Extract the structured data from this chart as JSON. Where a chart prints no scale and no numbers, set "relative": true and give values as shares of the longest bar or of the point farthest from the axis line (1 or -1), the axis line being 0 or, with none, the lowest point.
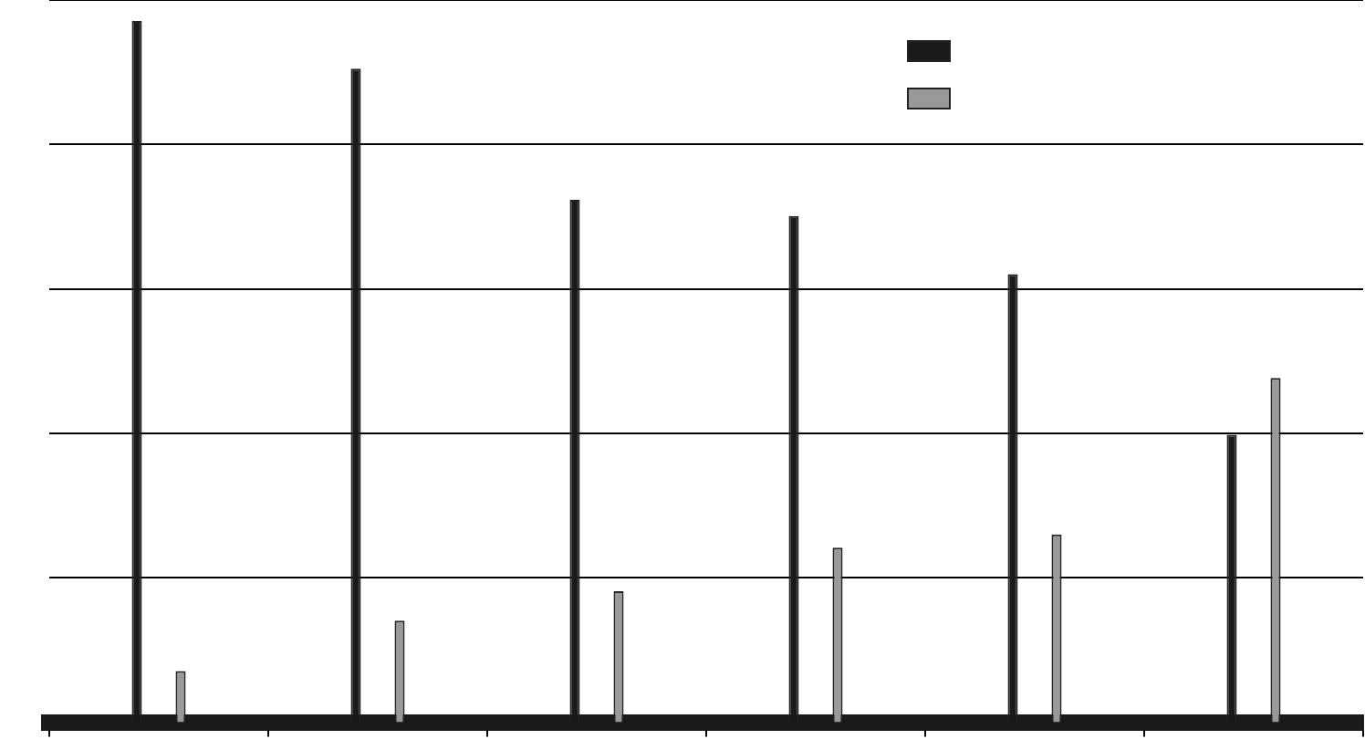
{
  "chart_data": {
    "type": "bar",
    "relative": true,
    "grid": "y",
    "categories": [
      null,
      null,
      null,
      null,
      null,
      null
    ],
    "series": [
      {
        "color": "#1a1a1a",
        "values": [
          1,
          0.932,
          0.745,
          0.722,
          0.639,
          0.41
        ]
      },
      {
        "color": "#999999",
        "values": [
          0.073,
          0.145,
          0.187,
          0.249,
          0.268,
          0.491
        ]
      }
    ]
  }
}
